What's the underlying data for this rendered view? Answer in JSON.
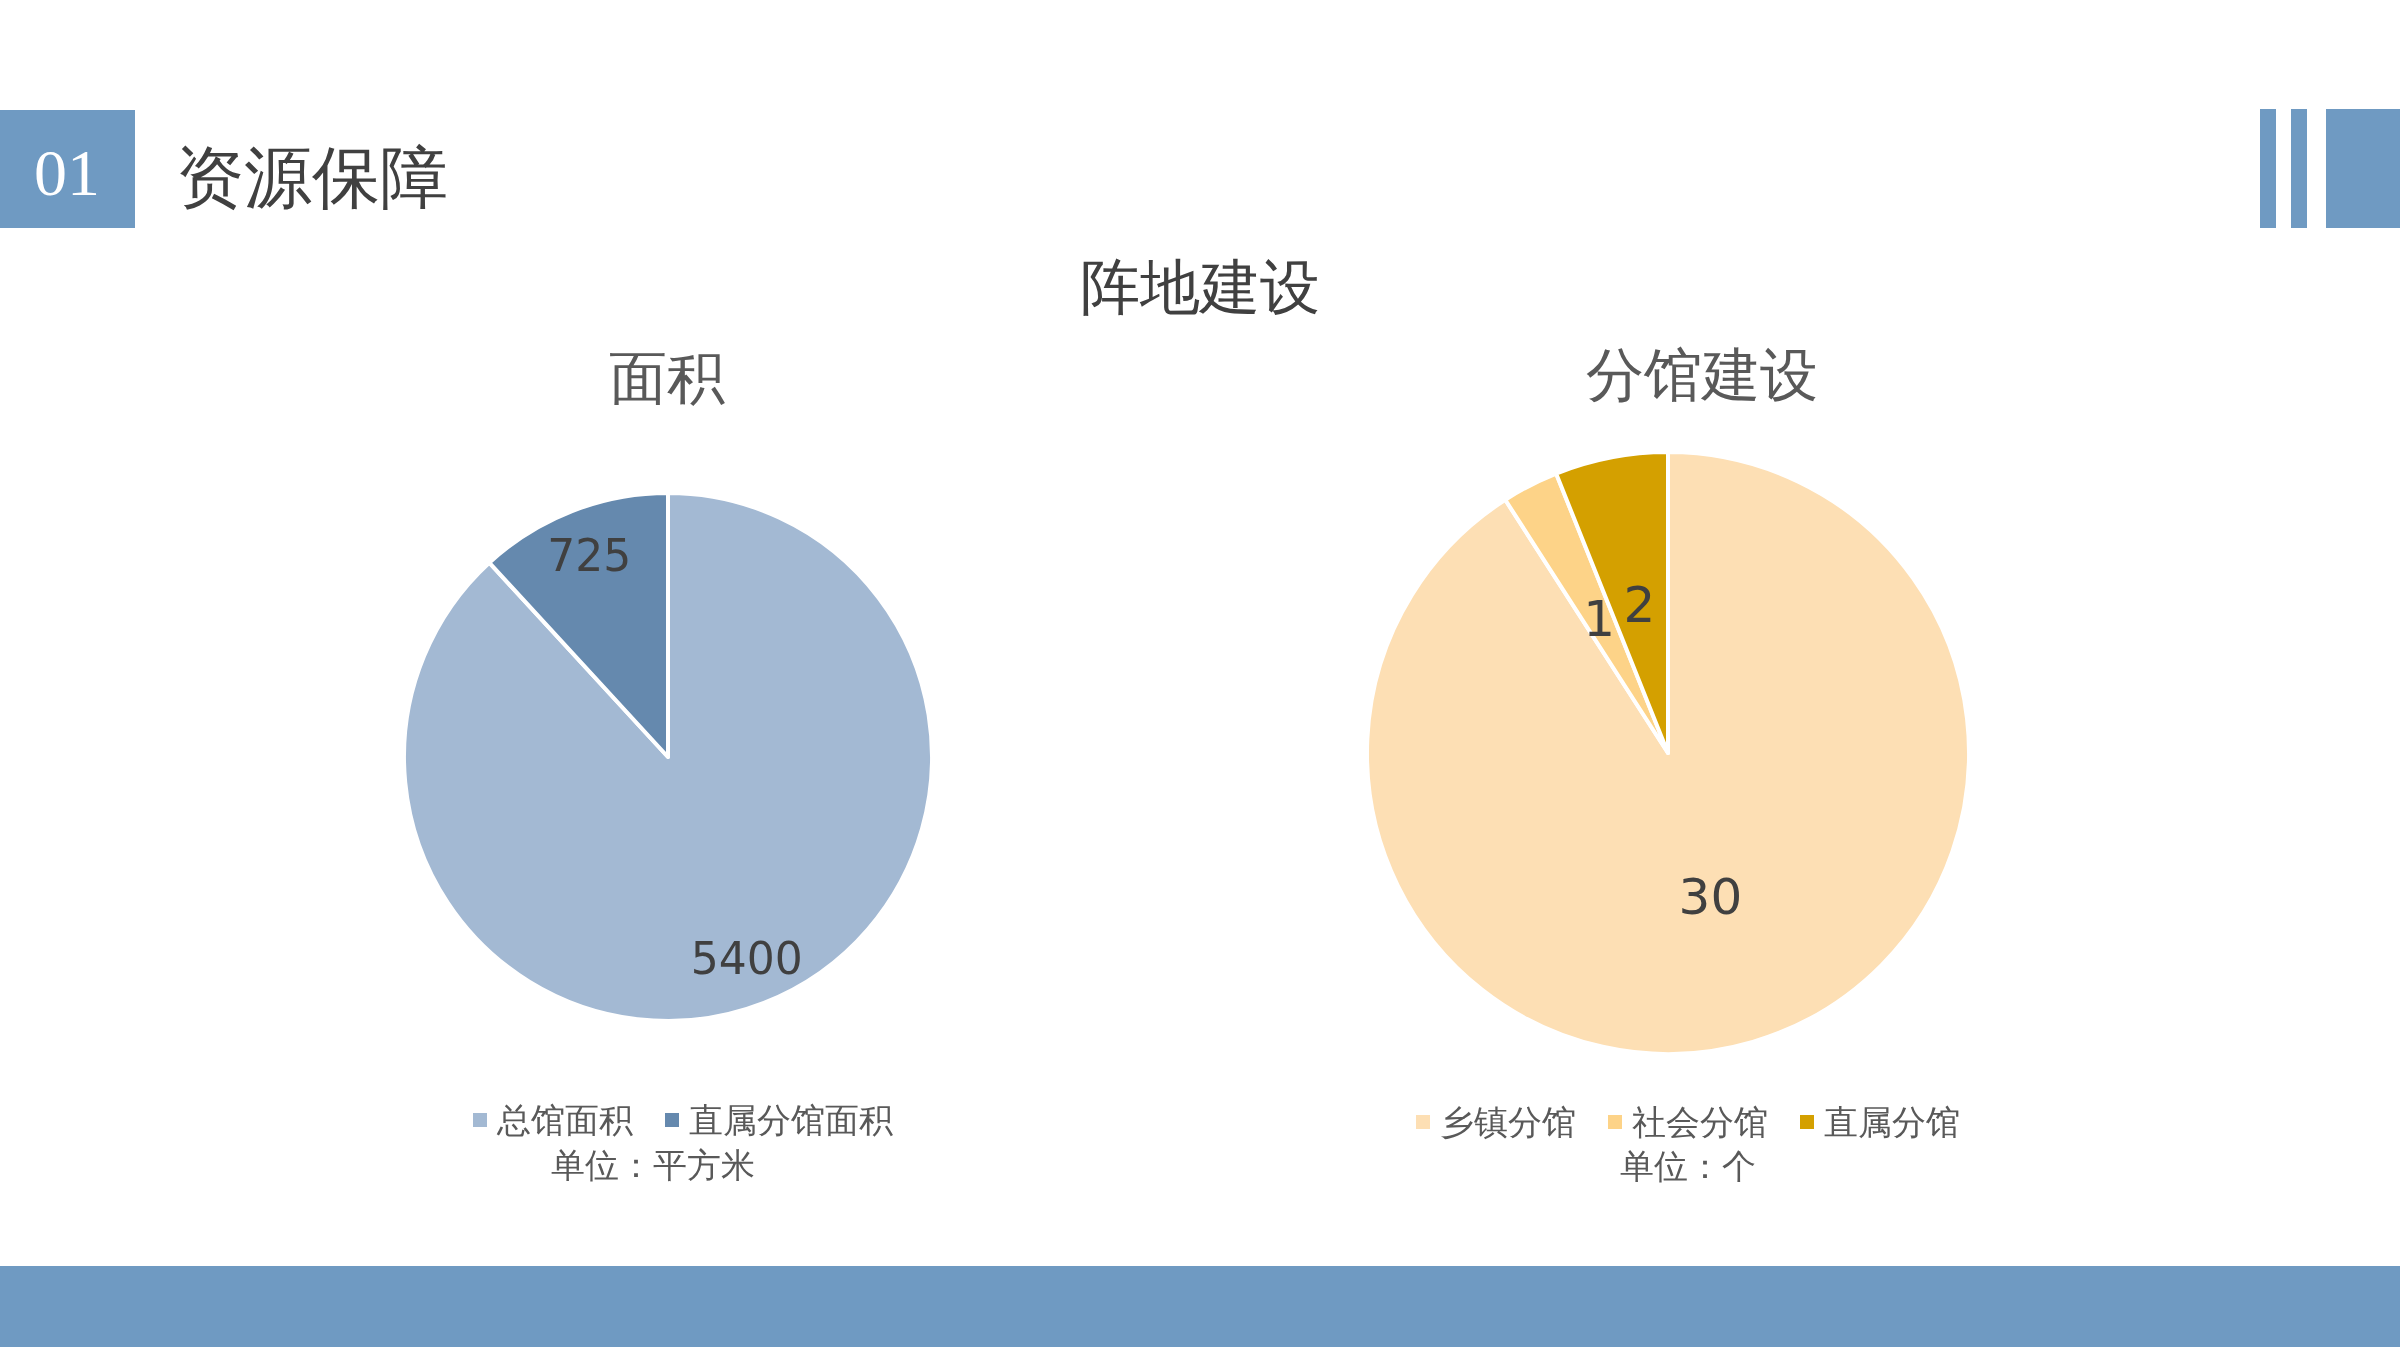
{
  "chart_data": [
    {
      "type": "other",
      "title": "资源保障",
      "subtitle": "阵地建设",
      "annotations": [
        "01"
      ]
    },
    {
      "type": "pie",
      "title": "面积",
      "categories": [
        "总馆面积",
        "直属分馆面积"
      ],
      "values": [
        5400,
        725
      ],
      "colors": [
        "#a3b9d3",
        "#6589ae"
      ],
      "data_labels": true,
      "legend": "bottom",
      "annotations": [
        "单位：平方米"
      ]
    },
    {
      "type": "pie",
      "title": "分馆建设",
      "categories": [
        "乡镇分馆",
        "社会分馆",
        "直属分馆"
      ],
      "values": [
        30,
        1,
        2
      ],
      "colors": [
        "#fddfb4",
        "#fdd388",
        "#d4a000"
      ],
      "data_labels": true,
      "legend": "bottom",
      "annotations": [
        "单位：个"
      ]
    }
  ]
}
